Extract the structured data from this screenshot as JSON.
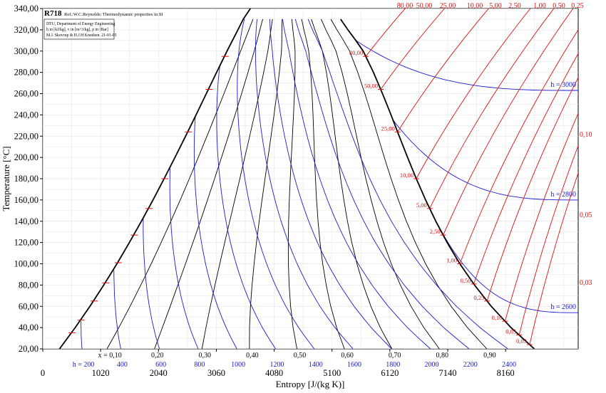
{
  "chart_data": {
    "type": "line",
    "title": "R718",
    "subtitle": "Ref.:W.C.Reynolds: Thermodynamic properties in SI",
    "info_box": [
      "DTU, Department of Energy Engineering",
      "h in [kJ/kg], v in [m^3/kg], p in [Bar]",
      "M.J. Skovrup & H.J.H Knudsen. 21-01-05"
    ],
    "xlabel": "Entropy [J/(kg K)]",
    "ylabel": "Temperature [°C]",
    "xlim": [
      0,
      9440
    ],
    "ylim": [
      20,
      340
    ],
    "x_ticks": [
      "0",
      "1020",
      "2040",
      "3060",
      "4080",
      "5100",
      "6120",
      "7140",
      "8160"
    ],
    "x_tick_values": [
      0,
      1020,
      2040,
      3060,
      4080,
      5100,
      6120,
      7140,
      8160
    ],
    "y_ticks": [
      "20,00",
      "40,00",
      "60,00",
      "80,00",
      "100,00",
      "120,00",
      "140,00",
      "160,00",
      "180,00",
      "200,00",
      "220,00",
      "240,00",
      "260,00",
      "280,00",
      "300,00",
      "320,00",
      "340,00"
    ],
    "y_tick_values": [
      20,
      40,
      60,
      80,
      100,
      120,
      140,
      160,
      180,
      200,
      220,
      240,
      260,
      280,
      300,
      320,
      340
    ],
    "saturation_liquid": [
      [
        296,
        20
      ],
      [
        572,
        40
      ],
      [
        831,
        60
      ],
      [
        1075,
        80
      ],
      [
        1307,
        100
      ],
      [
        1527,
        120
      ],
      [
        1739,
        140
      ],
      [
        1943,
        160
      ],
      [
        2140,
        180
      ],
      [
        2331,
        200
      ],
      [
        2518,
        220
      ],
      [
        2702,
        240
      ],
      [
        2884,
        260
      ],
      [
        3065,
        280
      ],
      [
        3248,
        300
      ],
      [
        3440,
        320
      ],
      [
        3535,
        330
      ],
      [
        3660,
        340
      ]
    ],
    "saturation_vapor": [
      [
        8666,
        20
      ],
      [
        8255,
        40
      ],
      [
        7908,
        60
      ],
      [
        7612,
        80
      ],
      [
        7354,
        100
      ],
      [
        7129,
        120
      ],
      [
        6930,
        140
      ],
      [
        6750,
        160
      ],
      [
        6586,
        180
      ],
      [
        6432,
        200
      ],
      [
        6285,
        220
      ],
      [
        6140,
        240
      ],
      [
        5990,
        260
      ],
      [
        5830,
        280
      ],
      [
        5650,
        300
      ],
      [
        5520,
        310
      ],
      [
        5380,
        320
      ],
      [
        5250,
        330
      ]
    ],
    "quality_labels": [
      "x = 0,10",
      "0,20",
      "0,30",
      "0,40",
      "0,50",
      "0,60",
      "0,70",
      "0,80",
      "0,90"
    ],
    "quality_values": [
      0.1,
      0.2,
      0.3,
      0.4,
      0.5,
      0.6,
      0.7,
      0.8,
      0.9
    ],
    "enthalpy_labels": [
      "h = 200",
      "400",
      "600",
      "800",
      "1000",
      "1200",
      "1400",
      "1600",
      "1800",
      "2000",
      "2200",
      "2400"
    ],
    "enthalpy_values": [
      200,
      400,
      600,
      800,
      1000,
      1200,
      1400,
      1600,
      1800,
      2000,
      2200,
      2400
    ],
    "enthalpy_vapor_labels": [
      "h = 3000",
      "h = 2800",
      "h = 2600"
    ],
    "enthalpy_vapor_values": [
      3000,
      2800,
      2600
    ],
    "pressure_top_labels": [
      "80,00",
      "50,00",
      "25,00",
      "10,00",
      "5,00",
      "2,50",
      "1,00",
      "0,50",
      "0,25"
    ],
    "pressure_inline_labels": [
      "80,00",
      "50,00",
      "25,00",
      "10,00",
      "5,00",
      "2,50",
      "1,00",
      "0,50",
      "0,25",
      "0,10",
      "0,05",
      "0,03"
    ],
    "pressure_values": [
      80,
      50,
      25,
      10,
      5,
      2.5,
      1,
      0.5,
      0.25,
      0.1,
      0.05,
      0.03
    ],
    "volume_labels": [
      "0,10",
      "0,05",
      "0,03"
    ],
    "colors": {
      "saturation": "#000000",
      "quality": "#000000",
      "enthalpy": "#1a1ad0",
      "pressure": "#e01010",
      "grid": "#e8e8e8"
    },
    "grid": true,
    "legend": "none"
  }
}
